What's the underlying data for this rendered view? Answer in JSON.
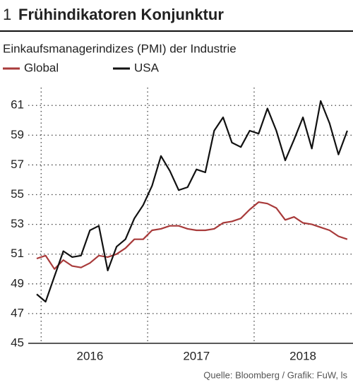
{
  "chart_data": {
    "type": "line",
    "number": "1",
    "title": "Frühindikatoren Konjunktur",
    "subtitle": "Einkaufsmanagerindizes (PMI) der Industrie",
    "source": "Quelle: Bloomberg / Grafik: FuW, ls",
    "categories": [
      null,
      null,
      null,
      null,
      null,
      null,
      "2016",
      null,
      null,
      null,
      null,
      null,
      null,
      null,
      null,
      null,
      null,
      null,
      "2017",
      null,
      null,
      null,
      null,
      null,
      null,
      null,
      null,
      null,
      null,
      null,
      "2018",
      null,
      null,
      null,
      null,
      null
    ],
    "series": [
      {
        "name": "Global",
        "color": "#a83a3a",
        "values": [
          50.7,
          50.9,
          50.0,
          50.6,
          50.2,
          50.1,
          50.4,
          50.9,
          50.8,
          51.0,
          51.4,
          52.0,
          52.0,
          52.6,
          52.7,
          52.9,
          52.9,
          52.7,
          52.6,
          52.6,
          52.7,
          53.1,
          53.2,
          53.4,
          54.0,
          54.5,
          54.4,
          54.1,
          53.3,
          53.5,
          53.1,
          53.0,
          52.8,
          52.6,
          52.2,
          52.0
        ]
      },
      {
        "name": "USA",
        "color": "#111111",
        "values": [
          48.3,
          47.8,
          49.5,
          51.2,
          50.8,
          50.9,
          52.6,
          52.9,
          49.9,
          51.5,
          52.0,
          53.4,
          54.3,
          55.6,
          57.6,
          56.6,
          55.3,
          55.5,
          56.7,
          56.5,
          59.3,
          60.2,
          58.5,
          58.2,
          59.3,
          59.1,
          60.8,
          59.3,
          57.3,
          58.7,
          60.2,
          58.1,
          61.3,
          59.8,
          57.7,
          59.3
        ]
      }
    ],
    "ylim": [
      45,
      62.2
    ],
    "yticks": [
      45,
      47,
      49,
      51,
      53,
      55,
      57,
      59,
      61
    ],
    "grid": true
  }
}
